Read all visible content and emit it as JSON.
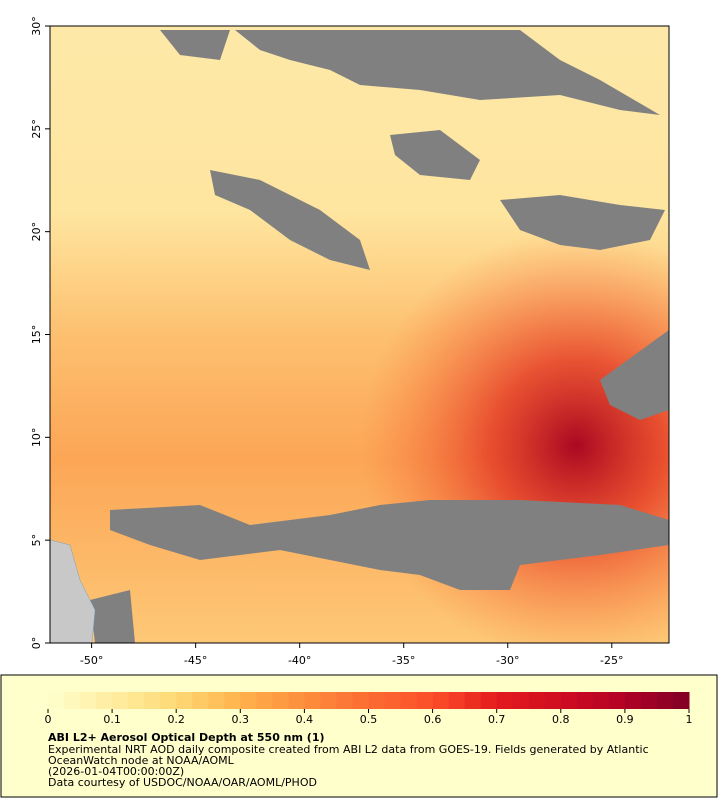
{
  "map": {
    "xlim": [
      -52,
      -22.25
    ],
    "ylim": [
      0,
      30
    ],
    "xticks": [
      {
        "value": -50,
        "label": "-50°"
      },
      {
        "value": -45,
        "label": "-45°"
      },
      {
        "value": -40,
        "label": "-40°"
      },
      {
        "value": -35,
        "label": "-35°"
      },
      {
        "value": -30,
        "label": "-30°"
      },
      {
        "value": -25,
        "label": "-25°"
      }
    ],
    "yticks": [
      {
        "value": 0,
        "label": "0°"
      },
      {
        "value": 5,
        "label": "5°"
      },
      {
        "value": 10,
        "label": "10°"
      },
      {
        "value": 15,
        "label": "15°"
      },
      {
        "value": 20,
        "label": "20°"
      },
      {
        "value": 25,
        "label": "25°"
      },
      {
        "value": 30,
        "label": "30°"
      }
    ]
  },
  "colorbar": {
    "lim": [
      0,
      1
    ],
    "ticks": [
      0,
      0.1,
      0.2,
      0.3,
      0.4,
      0.5,
      0.6,
      0.7,
      0.8,
      0.9,
      1
    ],
    "colors": [
      "#ffffcc",
      "#ffeda0",
      "#fed976",
      "#feb24c",
      "#fd8d3c",
      "#fc6c33",
      "#fc4e2a",
      "#e31a1c",
      "#d00d21",
      "#b10026",
      "#800026"
    ]
  },
  "legend": {
    "title": "ABI L2+ Aerosol Optical Depth at 550 nm (1)",
    "description": [
      "Experimental NRT AOD daily composite created from ABI L2 data from GOES-19. Fields generated by Atlantic",
      "OceanWatch node at NOAA/AOML"
    ],
    "time": "(2026-01-04T00:00:00Z)",
    "credit": "Data courtesy of USDOC/NOAA/OAR/AOML/PHOD"
  }
}
